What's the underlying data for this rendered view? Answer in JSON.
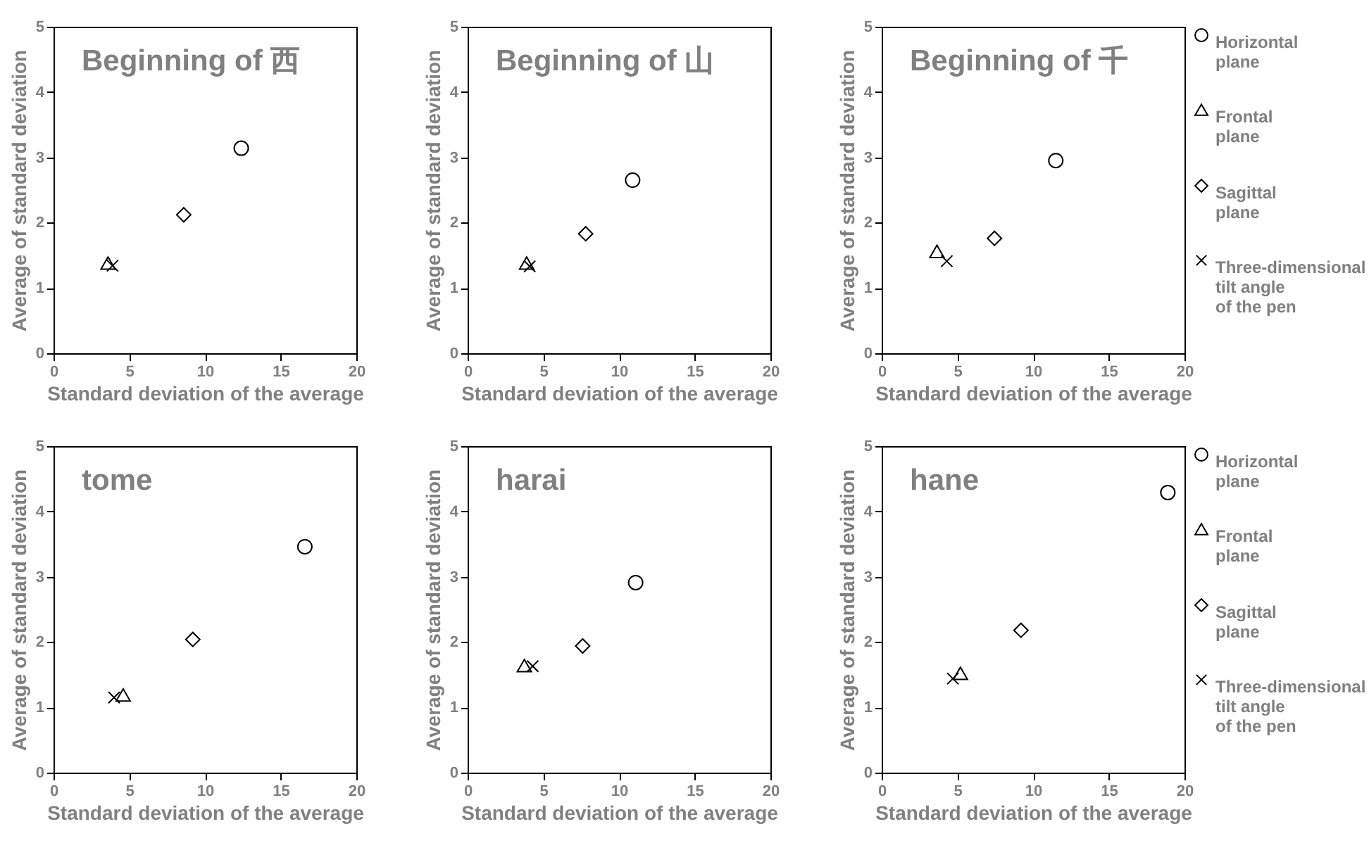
{
  "chart_data": [
    {
      "type": "scatter",
      "title": "Beginning of 西",
      "xlabel": "Standard deviation of the average",
      "ylabel": "Average of standard deviation",
      "xlim": [
        0,
        20
      ],
      "xticks": [
        0,
        5,
        10,
        15,
        20
      ],
      "ylim": [
        0,
        5
      ],
      "yticks": [
        0,
        1,
        2,
        3,
        4,
        5
      ],
      "series": [
        {
          "color": "#000000",
          "marker": "circle",
          "x": [
            12.4
          ],
          "values": [
            3.14
          ]
        },
        {
          "color": "#000000",
          "marker": "triangle",
          "x": [
            3.6
          ],
          "values": [
            1.38
          ]
        },
        {
          "color": "#000000",
          "marker": "diamond",
          "x": [
            8.6
          ],
          "values": [
            2.12
          ]
        },
        {
          "color": "#000000",
          "marker": "cross",
          "x": [
            3.9
          ],
          "values": [
            1.34
          ]
        }
      ]
    },
    {
      "type": "scatter",
      "title": "Beginning of 山",
      "xlabel": "Standard deviation of the average",
      "ylabel": "Average of standard deviation",
      "xlim": [
        0,
        20
      ],
      "xticks": [
        0,
        5,
        10,
        15,
        20
      ],
      "ylim": [
        0,
        5
      ],
      "yticks": [
        0,
        1,
        2,
        3,
        4,
        5
      ],
      "series": [
        {
          "color": "#000000",
          "marker": "circle",
          "x": [
            10.9
          ],
          "values": [
            2.65
          ]
        },
        {
          "color": "#000000",
          "marker": "triangle",
          "x": [
            3.9
          ],
          "values": [
            1.38
          ]
        },
        {
          "color": "#000000",
          "marker": "diamond",
          "x": [
            7.8
          ],
          "values": [
            1.83
          ]
        },
        {
          "color": "#000000",
          "marker": "cross",
          "x": [
            4.1
          ],
          "values": [
            1.33
          ]
        }
      ]
    },
    {
      "type": "scatter",
      "title": "Beginning of 千",
      "xlabel": "Standard deviation of the average",
      "ylabel": "Average of standard deviation",
      "xlim": [
        0,
        20
      ],
      "xticks": [
        0,
        5,
        10,
        15,
        20
      ],
      "ylim": [
        0,
        5
      ],
      "yticks": [
        0,
        1,
        2,
        3,
        4,
        5
      ],
      "legend": "right",
      "series": [
        {
          "name": "Horizontal plane",
          "color": "#000000",
          "marker": "circle",
          "x": [
            11.5
          ],
          "values": [
            2.95
          ]
        },
        {
          "name": "Frontal plane",
          "color": "#000000",
          "marker": "triangle",
          "x": [
            3.65
          ],
          "values": [
            1.56
          ]
        },
        {
          "name": "Sagittal plane",
          "color": "#000000",
          "marker": "diamond",
          "x": [
            7.45
          ],
          "values": [
            1.76
          ]
        },
        {
          "name": "Three-dimensional tilt angle of the pen",
          "color": "#000000",
          "marker": "cross",
          "x": [
            4.3
          ],
          "values": [
            1.41
          ]
        }
      ]
    },
    {
      "type": "scatter",
      "title": "tome",
      "xlabel": "Standard deviation of the average",
      "ylabel": "Average of standard deviation",
      "xlim": [
        0,
        20
      ],
      "xticks": [
        0,
        5,
        10,
        15,
        20
      ],
      "ylim": [
        0,
        5
      ],
      "yticks": [
        0,
        1,
        2,
        3,
        4,
        5
      ],
      "series": [
        {
          "color": "#000000",
          "marker": "circle",
          "x": [
            16.6
          ],
          "values": [
            3.46
          ]
        },
        {
          "color": "#000000",
          "marker": "triangle",
          "x": [
            4.6
          ],
          "values": [
            1.19
          ]
        },
        {
          "color": "#000000",
          "marker": "diamond",
          "x": [
            9.2
          ],
          "values": [
            2.04
          ]
        },
        {
          "color": "#000000",
          "marker": "cross",
          "x": [
            4.0
          ],
          "values": [
            1.15
          ]
        }
      ]
    },
    {
      "type": "scatter",
      "title": "harai",
      "xlabel": "Standard deviation of the average",
      "ylabel": "Average of standard deviation",
      "xlim": [
        0,
        20
      ],
      "xticks": [
        0,
        5,
        10,
        15,
        20
      ],
      "ylim": [
        0,
        5
      ],
      "yticks": [
        0,
        1,
        2,
        3,
        4,
        5
      ],
      "series": [
        {
          "color": "#000000",
          "marker": "circle",
          "x": [
            11.1
          ],
          "values": [
            2.91
          ]
        },
        {
          "color": "#000000",
          "marker": "triangle",
          "x": [
            3.75
          ],
          "values": [
            1.64
          ]
        },
        {
          "color": "#000000",
          "marker": "diamond",
          "x": [
            7.6
          ],
          "values": [
            1.94
          ]
        },
        {
          "color": "#000000",
          "marker": "cross",
          "x": [
            4.3
          ],
          "values": [
            1.63
          ]
        }
      ]
    },
    {
      "type": "scatter",
      "title": "hane",
      "xlabel": "Standard deviation of the average",
      "ylabel": "Average of standard deviation",
      "xlim": [
        0,
        20
      ],
      "xticks": [
        0,
        5,
        10,
        15,
        20
      ],
      "ylim": [
        0,
        5
      ],
      "yticks": [
        0,
        1,
        2,
        3,
        4,
        5
      ],
      "legend": "right",
      "series": [
        {
          "name": "Horizontal plane",
          "color": "#000000",
          "marker": "circle",
          "x": [
            18.9
          ],
          "values": [
            4.29
          ]
        },
        {
          "name": "Frontal plane",
          "color": "#000000",
          "marker": "triangle",
          "x": [
            5.2
          ],
          "values": [
            1.52
          ]
        },
        {
          "name": "Sagittal plane",
          "color": "#000000",
          "marker": "diamond",
          "x": [
            9.2
          ],
          "values": [
            2.18
          ]
        },
        {
          "name": "Three-dimensional tilt angle of the pen",
          "color": "#000000",
          "marker": "cross",
          "x": [
            4.7
          ],
          "values": [
            1.44
          ]
        }
      ]
    }
  ]
}
